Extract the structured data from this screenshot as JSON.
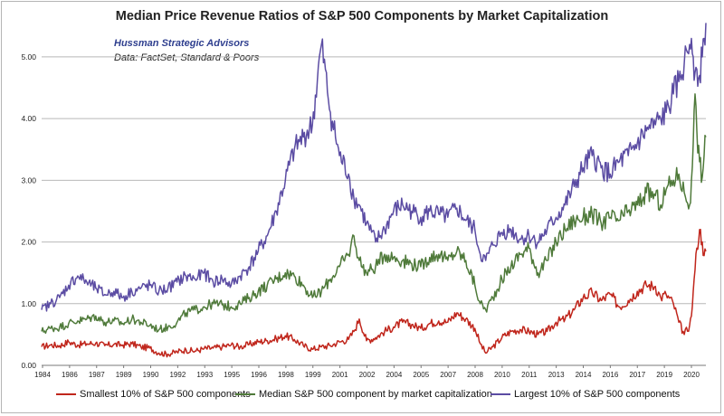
{
  "chart_data": {
    "type": "line",
    "title": "Median Price Revenue Ratios of S&P 500 Components by Market Capitalization",
    "annotation": {
      "organization": "Hussman Strategic Advisors",
      "source": "Data: FactSet, Standard & Poors"
    },
    "xlabel": "",
    "ylabel": "",
    "xlim": [
      1984.0,
      2020.8
    ],
    "ylim": [
      0,
      5.6
    ],
    "grid": true,
    "legend_position": "bottom",
    "x_tick_labels": [
      "1984",
      "1986",
      "1987",
      "1989",
      "1990",
      "1992",
      "1993",
      "1995",
      "1996",
      "1998",
      "1999",
      "2001",
      "2002",
      "2004",
      "2005",
      "2007",
      "2008",
      "2010",
      "2011",
      "2013",
      "2014",
      "2016",
      "2017",
      "2019",
      "2020"
    ],
    "y_tick_labels": [
      "0.00",
      "1.00",
      "2.00",
      "3.00",
      "4.00",
      "5.00"
    ],
    "y_tick_values": [
      0,
      1,
      2,
      3,
      4,
      5
    ],
    "series": [
      {
        "name": "Smallest 10% of S&P 500 components",
        "color": "#c0261c",
        "x": [
          1984.0,
          1984.5,
          1985.0,
          1985.5,
          1986.0,
          1986.5,
          1987.0,
          1987.5,
          1988.0,
          1988.5,
          1989.0,
          1989.5,
          1990.0,
          1990.5,
          1991.0,
          1991.5,
          1992.0,
          1992.5,
          1993.0,
          1993.5,
          1994.0,
          1994.5,
          1995.0,
          1995.5,
          1996.0,
          1996.5,
          1997.0,
          1997.5,
          1998.0,
          1998.5,
          1999.0,
          1999.5,
          2000.0,
          2000.5,
          2001.0,
          2001.3,
          2001.6,
          2002.0,
          2002.5,
          2003.0,
          2003.5,
          2004.0,
          2004.5,
          2005.0,
          2005.5,
          2006.0,
          2006.5,
          2007.0,
          2007.5,
          2008.0,
          2008.3,
          2008.6,
          2009.0,
          2009.5,
          2010.0,
          2010.5,
          2011.0,
          2011.5,
          2012.0,
          2012.5,
          2013.0,
          2013.5,
          2014.0,
          2014.5,
          2015.0,
          2015.5,
          2016.0,
          2016.5,
          2017.0,
          2017.5,
          2018.0,
          2018.3,
          2018.6,
          2019.0,
          2019.3,
          2019.6,
          2019.9,
          2020.0,
          2020.1,
          2020.2,
          2020.3,
          2020.45,
          2020.6,
          2020.7,
          2020.8
        ],
        "values": [
          0.3,
          0.33,
          0.32,
          0.38,
          0.33,
          0.35,
          0.36,
          0.32,
          0.34,
          0.33,
          0.35,
          0.3,
          0.28,
          0.2,
          0.18,
          0.22,
          0.25,
          0.23,
          0.27,
          0.28,
          0.3,
          0.33,
          0.3,
          0.34,
          0.38,
          0.4,
          0.43,
          0.48,
          0.42,
          0.32,
          0.26,
          0.3,
          0.32,
          0.38,
          0.42,
          0.55,
          0.75,
          0.4,
          0.45,
          0.55,
          0.62,
          0.7,
          0.66,
          0.6,
          0.68,
          0.72,
          0.7,
          0.85,
          0.75,
          0.6,
          0.35,
          0.2,
          0.3,
          0.45,
          0.55,
          0.58,
          0.55,
          0.5,
          0.55,
          0.7,
          0.75,
          0.9,
          1.1,
          1.18,
          1.05,
          1.15,
          0.95,
          1.05,
          1.2,
          1.3,
          1.28,
          1.1,
          1.15,
          1.0,
          0.7,
          0.5,
          0.65,
          0.8,
          1.2,
          1.55,
          1.9,
          2.2,
          2.0,
          1.78,
          1.85
        ]
      },
      {
        "name": "Median S&P 500 component by market capitalization",
        "color": "#4f7a3a",
        "x": [
          1984.0,
          1984.5,
          1985.0,
          1985.5,
          1986.0,
          1986.5,
          1987.0,
          1987.5,
          1988.0,
          1988.5,
          1989.0,
          1989.5,
          1990.0,
          1990.5,
          1991.0,
          1991.5,
          1992.0,
          1992.5,
          1993.0,
          1993.5,
          1994.0,
          1994.5,
          1995.0,
          1995.5,
          1996.0,
          1996.5,
          1997.0,
          1997.5,
          1998.0,
          1998.5,
          1999.0,
          1999.5,
          2000.0,
          2000.5,
          2001.0,
          2001.3,
          2001.6,
          2002.0,
          2002.5,
          2003.0,
          2003.5,
          2004.0,
          2004.5,
          2005.0,
          2005.5,
          2006.0,
          2006.5,
          2007.0,
          2007.5,
          2008.0,
          2008.3,
          2008.6,
          2009.0,
          2009.5,
          2010.0,
          2010.5,
          2011.0,
          2011.5,
          2012.0,
          2012.5,
          2013.0,
          2013.5,
          2014.0,
          2014.5,
          2015.0,
          2015.5,
          2016.0,
          2016.5,
          2017.0,
          2017.5,
          2018.0,
          2018.3,
          2018.6,
          2019.0,
          2019.3,
          2019.6,
          2019.9,
          2020.0,
          2020.1,
          2020.2,
          2020.3,
          2020.45,
          2020.6,
          2020.7,
          2020.8
        ],
        "values": [
          0.55,
          0.6,
          0.62,
          0.68,
          0.72,
          0.75,
          0.8,
          0.7,
          0.72,
          0.68,
          0.75,
          0.7,
          0.65,
          0.58,
          0.62,
          0.7,
          0.85,
          0.9,
          0.95,
          1.0,
          0.98,
          0.95,
          1.0,
          1.1,
          1.2,
          1.3,
          1.4,
          1.5,
          1.45,
          1.3,
          1.1,
          1.2,
          1.4,
          1.6,
          1.8,
          2.1,
          1.7,
          1.5,
          1.6,
          1.8,
          1.75,
          1.7,
          1.65,
          1.6,
          1.75,
          1.8,
          1.7,
          1.85,
          1.7,
          1.3,
          1.0,
          0.9,
          1.1,
          1.4,
          1.6,
          1.8,
          1.9,
          1.5,
          1.7,
          2.0,
          2.2,
          2.35,
          2.4,
          2.45,
          2.3,
          2.4,
          2.35,
          2.5,
          2.6,
          2.8,
          2.75,
          2.6,
          2.85,
          3.0,
          3.1,
          2.8,
          2.6,
          3.0,
          3.6,
          4.4,
          3.8,
          3.3,
          3.05,
          3.4,
          3.7
        ]
      },
      {
        "name": "Largest 10% of S&P 500 components",
        "color": "#5b4ca3",
        "x": [
          1984.0,
          1984.5,
          1985.0,
          1985.5,
          1986.0,
          1986.5,
          1987.0,
          1987.5,
          1988.0,
          1988.5,
          1989.0,
          1989.5,
          1990.0,
          1990.5,
          1991.0,
          1991.5,
          1992.0,
          1992.5,
          1993.0,
          1993.5,
          1994.0,
          1994.5,
          1995.0,
          1995.5,
          1996.0,
          1996.5,
          1997.0,
          1997.5,
          1998.0,
          1998.5,
          1999.0,
          1999.5,
          2000.0,
          2000.5,
          2001.0,
          2001.3,
          2001.6,
          2002.0,
          2002.5,
          2003.0,
          2003.5,
          2004.0,
          2004.5,
          2005.0,
          2005.5,
          2006.0,
          2006.5,
          2007.0,
          2007.5,
          2008.0,
          2008.3,
          2008.6,
          2009.0,
          2009.5,
          2010.0,
          2010.5,
          2011.0,
          2011.5,
          2012.0,
          2012.5,
          2013.0,
          2013.5,
          2014.0,
          2014.5,
          2015.0,
          2015.5,
          2016.0,
          2016.5,
          2017.0,
          2017.5,
          2018.0,
          2018.3,
          2018.6,
          2019.0,
          2019.3,
          2019.6,
          2019.9,
          2020.0,
          2020.1,
          2020.2,
          2020.3,
          2020.45,
          2020.6,
          2020.7,
          2020.8
        ],
        "values": [
          0.9,
          1.0,
          1.1,
          1.3,
          1.45,
          1.35,
          1.25,
          1.15,
          1.2,
          1.1,
          1.2,
          1.25,
          1.3,
          1.2,
          1.25,
          1.35,
          1.45,
          1.4,
          1.5,
          1.35,
          1.4,
          1.3,
          1.45,
          1.6,
          1.85,
          2.1,
          2.5,
          3.0,
          3.5,
          3.7,
          3.9,
          5.2,
          4.1,
          3.4,
          3.1,
          2.7,
          2.6,
          2.3,
          2.0,
          2.2,
          2.5,
          2.6,
          2.5,
          2.4,
          2.5,
          2.45,
          2.4,
          2.55,
          2.35,
          2.2,
          1.8,
          1.7,
          1.95,
          2.15,
          2.2,
          2.05,
          2.1,
          2.0,
          2.2,
          2.4,
          2.6,
          2.9,
          3.2,
          3.4,
          3.2,
          3.1,
          3.3,
          3.4,
          3.6,
          3.8,
          3.9,
          4.0,
          4.1,
          4.4,
          4.6,
          4.9,
          5.2,
          5.3,
          5.0,
          4.75,
          4.8,
          4.7,
          5.0,
          5.3,
          5.55
        ]
      }
    ]
  }
}
